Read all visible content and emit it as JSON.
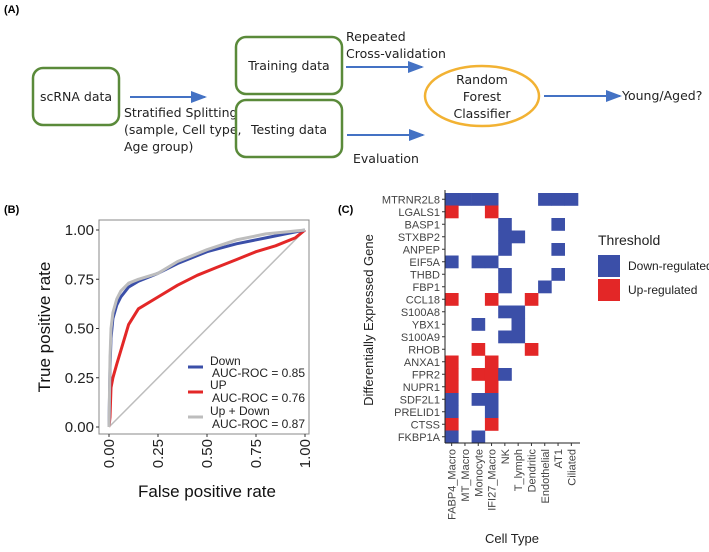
{
  "panels": {
    "a": "(A)",
    "b": "(B)",
    "c": "(C)"
  },
  "diagram": {
    "scrna": "scRNA data",
    "training": "Training data",
    "testing": "Testing data",
    "split_lines": [
      "Stratified Splitting",
      "(sample, Cell type,",
      "Age group)"
    ],
    "cv_lines": [
      "Repeated",
      "Cross-validation"
    ],
    "evaluation": "Evaluation",
    "classifier_lines": [
      "Random",
      "Forest",
      "Classifier"
    ],
    "output": "Young/Aged?",
    "colors": {
      "box": "#5a8a3a",
      "ellipse": "#f2b233",
      "arrow": "#4472c4"
    }
  },
  "chart_data": [
    {
      "type": "line",
      "title": "",
      "xlabel": "False positive rate",
      "ylabel": "True positive rate",
      "xlim": [
        0,
        1
      ],
      "ylim": [
        0,
        1
      ],
      "xticks": [
        "0.00",
        "0.25",
        "0.50",
        "0.75",
        "1.00"
      ],
      "yticks": [
        "0.00",
        "0.25",
        "0.50",
        "0.75",
        "1.00"
      ],
      "legend_placement": "bottom-right",
      "series": [
        {
          "name": "Down",
          "auc_label": "AUC-ROC = 0.85",
          "color": "#3b4fa8",
          "x": [
            0,
            0.005,
            0.01,
            0.02,
            0.04,
            0.06,
            0.1,
            0.15,
            0.25,
            0.35,
            0.5,
            0.65,
            0.8,
            0.9,
            1
          ],
          "y": [
            0,
            0.3,
            0.45,
            0.55,
            0.62,
            0.66,
            0.71,
            0.74,
            0.78,
            0.83,
            0.89,
            0.93,
            0.96,
            0.98,
            1
          ]
        },
        {
          "name": "UP",
          "auc_label": "AUC-ROC = 0.76",
          "color": "#e32727",
          "x": [
            0,
            0.005,
            0.01,
            0.02,
            0.04,
            0.07,
            0.1,
            0.15,
            0.25,
            0.35,
            0.45,
            0.55,
            0.65,
            0.75,
            0.85,
            0.95,
            1
          ],
          "y": [
            0,
            0.05,
            0.2,
            0.25,
            0.32,
            0.42,
            0.52,
            0.6,
            0.66,
            0.72,
            0.77,
            0.81,
            0.85,
            0.89,
            0.92,
            0.96,
            1
          ]
        },
        {
          "name": "Up + Down",
          "auc_label": "AUC-ROC = 0.87",
          "color": "#bdbdbd",
          "x": [
            0,
            0.005,
            0.01,
            0.02,
            0.04,
            0.06,
            0.1,
            0.15,
            0.25,
            0.35,
            0.5,
            0.65,
            0.8,
            0.9,
            1
          ],
          "y": [
            0,
            0.35,
            0.5,
            0.58,
            0.65,
            0.69,
            0.73,
            0.75,
            0.78,
            0.84,
            0.9,
            0.95,
            0.98,
            0.99,
            1
          ]
        }
      ]
    },
    {
      "type": "heatmap",
      "xlabel": "Cell Type",
      "ylabel": "Differentially Expressed Gene",
      "columns": [
        "FABP4_Macro",
        "MT_Macro",
        "Monocyte",
        "IFI27_Macro",
        "NK",
        "T_lymph",
        "Dendritic",
        "Endothelial",
        "AT1",
        "Ciliated"
      ],
      "rows": [
        "MTRNR2L8",
        "LGALS1",
        "BASP1",
        "STXBP2",
        "ANPEP",
        "EIF5A",
        "THBD",
        "FBP1",
        "CCL18",
        "S100A8",
        "YBX1",
        "S100A9",
        "RHOB",
        "ANXA1",
        "FPR2",
        "NUPR1",
        "SDF2L1",
        "PRELID1",
        "CTSS",
        "FKBP1A"
      ],
      "legend_title": "Threshold",
      "legend": [
        {
          "key": "D",
          "label": "Down-regulated",
          "color": "#3b4fa8"
        },
        {
          "key": "U",
          "label": "Up-regulated",
          "color": "#e32727"
        }
      ],
      "cells": [
        "DDDD...DDD",
        "U..U......",
        "....D...D.",
        "....DD....",
        "....D...D.",
        "D.DD......",
        "....D...D.",
        "....D..D..",
        "U..U..U...",
        "....DD....",
        "..D..D....",
        "....DD....",
        "..U...U...",
        "U..U......",
        "U.UUD.....",
        "U..U......",
        "D.DD......",
        "D..D......",
        "U..U......",
        "D.D......."
      ]
    }
  ]
}
